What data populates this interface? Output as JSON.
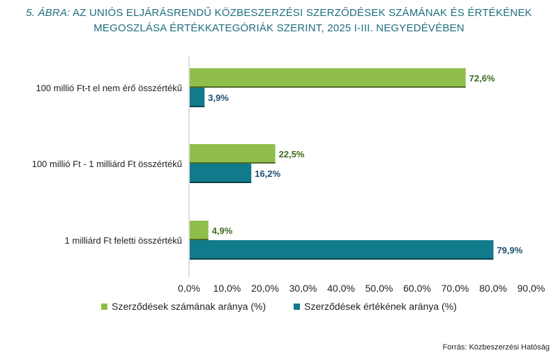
{
  "title": {
    "label": "5. ÁBRA:",
    "line1": "AZ UNIÓS ELJÁRÁSRENDŰ KÖZBESZERZÉSI SZERZŐDÉSEK SZÁMÁNAK ÉS ÉRTÉKÉNEK",
    "line2": "MEGOSZLÁSA ÉRTÉKKATEGÓRIÁK SZERINT, 2025 I-III. NEGYEDÉVÉBEN"
  },
  "source": "Forrás: Közbeszerzési Hatóság",
  "colors": {
    "series1": "#8fbf4a",
    "series2": "#117a8b",
    "label1": "#3e6b1f",
    "label2": "#1d4f6e"
  },
  "chart_data": {
    "type": "bar",
    "orientation": "horizontal",
    "categories": [
      "100 millió Ft-t el nem érő összértékű",
      "100 millió Ft - 1 milliárd Ft összértékű",
      "1 milliárd Ft feletti összértékű"
    ],
    "series": [
      {
        "name": "Szerződések számának aránya (%)",
        "values": [
          72.6,
          22.5,
          4.9
        ],
        "labels": [
          "72,6%",
          "22,5%",
          "4,9%"
        ]
      },
      {
        "name": "Szerződések értékének aránya (%)",
        "values": [
          3.9,
          16.2,
          79.9
        ],
        "labels": [
          "3,9%",
          "16,2%",
          "79,9%"
        ]
      }
    ],
    "xlim": [
      0,
      90
    ],
    "xticks": [
      "0,0%",
      "10,0%",
      "20,0%",
      "30,0%",
      "40,0%",
      "50,0%",
      "60,0%",
      "70,0%",
      "80,0%",
      "90,0%"
    ],
    "grid": false,
    "legend": "bottom"
  }
}
